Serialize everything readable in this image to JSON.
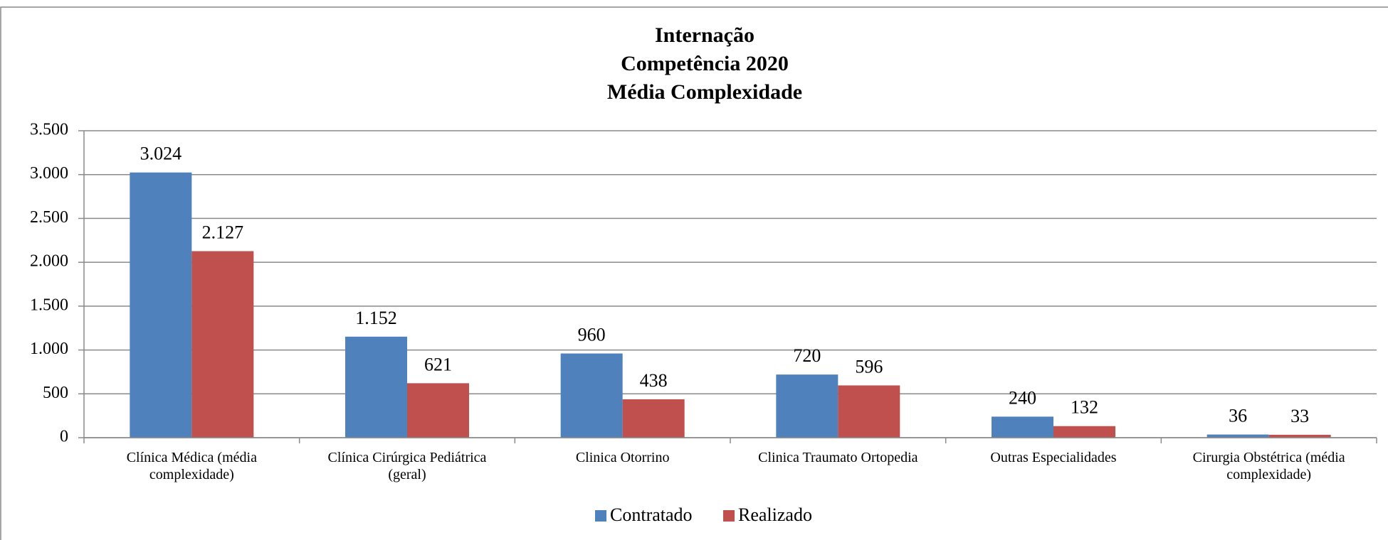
{
  "chart_data": {
    "type": "bar",
    "title": [
      "Internação",
      "Competência 2020",
      "Média Complexidade"
    ],
    "categories": [
      "Clínica Médica (média complexidade)",
      "Clínica Cirúrgica Pediátrica (geral)",
      "Clinica Otorrino",
      "Clinica Traumato Ortopedia",
      "Outras Especialidades",
      "Cirurgia Obstétrica (média complexidade)"
    ],
    "series": [
      {
        "name": "Contratado",
        "color": "#4f81bd",
        "values": [
          3024,
          1152,
          960,
          720,
          240,
          36
        ],
        "value_labels": [
          "3.024",
          "1.152",
          "960",
          "720",
          "240",
          "36"
        ]
      },
      {
        "name": "Realizado",
        "color": "#c0504d",
        "values": [
          2127,
          621,
          438,
          596,
          132,
          33
        ],
        "value_labels": [
          "2.127",
          "621",
          "438",
          "596",
          "132",
          "33"
        ]
      }
    ],
    "ylim": [
      0,
      3500
    ],
    "yticks": [
      0,
      500,
      {
        "value": 1000,
        "label": "1.000"
      },
      {
        "value": 1500,
        "label": "1.500"
      },
      {
        "value": 2000,
        "label": "2.000"
      },
      {
        "value": 2500,
        "label": "2.500"
      },
      {
        "value": 3000,
        "label": "3.000"
      },
      {
        "value": 3500,
        "label": "3.500"
      }
    ],
    "grid": true,
    "legend": "bottom"
  }
}
